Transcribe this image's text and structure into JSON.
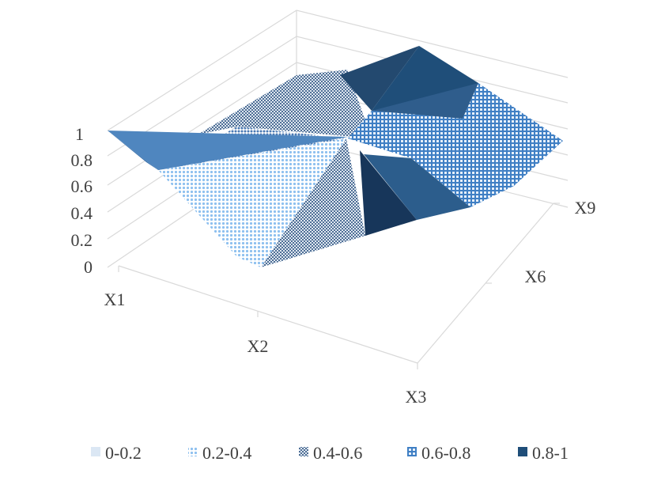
{
  "chart_data": {
    "type": "surface",
    "title": "",
    "z_ticks": [
      "0",
      "0.2",
      "0.4",
      "0.6",
      "0.8",
      "1"
    ],
    "x_categories": [
      "X1",
      "X2",
      "X3"
    ],
    "depth_categories": [
      "X9",
      "X6"
    ],
    "zlim": [
      0,
      1
    ],
    "legend": {
      "position": "bottom",
      "entries": [
        {
          "label": "0-0.2",
          "color": "#dbe7f4",
          "pattern": "solid-light"
        },
        {
          "label": "0.2-0.4",
          "color": "#7fb2e6",
          "pattern": "diagonal-dots"
        },
        {
          "label": "0.4-0.6",
          "color": "#5b7fa8",
          "pattern": "checker"
        },
        {
          "label": "0.6-0.8",
          "color": "#3d7fc1",
          "pattern": "grid"
        },
        {
          "label": "0.8-1",
          "color": "#1f4e79",
          "pattern": "solid-dark"
        }
      ]
    }
  }
}
